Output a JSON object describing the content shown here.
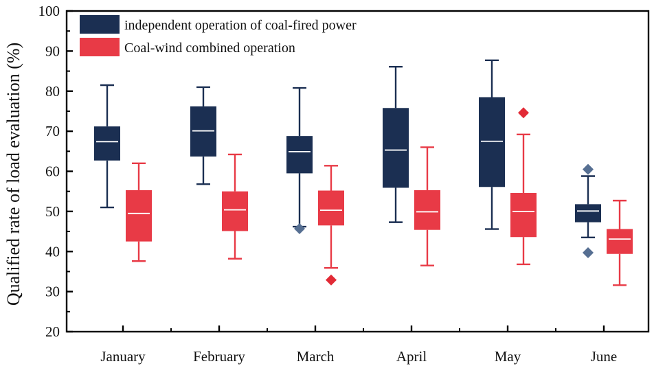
{
  "chart_data": {
    "type": "box",
    "title": "",
    "xlabel": "",
    "ylabel": "Qualified rate of load evaluation (%)",
    "ylim": [
      20,
      100
    ],
    "yticks": [
      20,
      30,
      40,
      50,
      60,
      70,
      80,
      90,
      100
    ],
    "categories": [
      "January",
      "February",
      "March",
      "April",
      "May",
      "June"
    ],
    "legend_position": "top-left",
    "grid": false,
    "series": [
      {
        "name": "independent operation of coal-fired power",
        "color": "#1b2f52",
        "outlier_color": "#566f92",
        "boxes": [
          {
            "whisker_low": 51.0,
            "q1": 62.7,
            "median": 67.4,
            "q3": 71.2,
            "whisker_high": 81.5,
            "outliers": []
          },
          {
            "whisker_low": 56.8,
            "q1": 63.7,
            "median": 70.1,
            "q3": 76.2,
            "whisker_high": 81.0,
            "outliers": []
          },
          {
            "whisker_low": 46.2,
            "q1": 59.5,
            "median": 64.9,
            "q3": 68.8,
            "whisker_high": 80.8,
            "outliers": [
              45.7
            ]
          },
          {
            "whisker_low": 47.3,
            "q1": 55.9,
            "median": 65.3,
            "q3": 75.8,
            "whisker_high": 86.1,
            "outliers": []
          },
          {
            "whisker_low": 45.6,
            "q1": 56.1,
            "median": 67.5,
            "q3": 78.5,
            "whisker_high": 87.7,
            "outliers": []
          },
          {
            "whisker_low": 43.5,
            "q1": 47.3,
            "median": 50.1,
            "q3": 51.8,
            "whisker_high": 58.8,
            "outliers": [
              60.5,
              39.7
            ]
          }
        ]
      },
      {
        "name": "Coal-wind combined operation",
        "color": "#e83a46",
        "outlier_color": "#e22a36",
        "boxes": [
          {
            "whisker_low": 37.6,
            "q1": 42.5,
            "median": 49.5,
            "q3": 55.3,
            "whisker_high": 62.0,
            "outliers": []
          },
          {
            "whisker_low": 38.2,
            "q1": 45.1,
            "median": 50.4,
            "q3": 55.0,
            "whisker_high": 64.2,
            "outliers": []
          },
          {
            "whisker_low": 35.9,
            "q1": 46.5,
            "median": 50.3,
            "q3": 55.2,
            "whisker_high": 61.4,
            "outliers": [
              32.9
            ]
          },
          {
            "whisker_low": 36.5,
            "q1": 45.4,
            "median": 49.9,
            "q3": 55.3,
            "whisker_high": 66.0,
            "outliers": []
          },
          {
            "whisker_low": 36.8,
            "q1": 43.6,
            "median": 50.0,
            "q3": 54.6,
            "whisker_high": 69.2,
            "outliers": [
              74.6
            ]
          },
          {
            "whisker_low": 31.6,
            "q1": 39.4,
            "median": 43.1,
            "q3": 45.6,
            "whisker_high": 52.7,
            "outliers": []
          }
        ]
      }
    ]
  }
}
